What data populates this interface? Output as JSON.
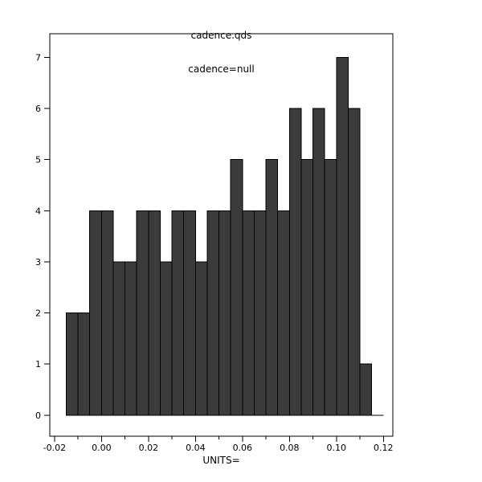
{
  "window": {
    "background": "#ffffff"
  },
  "chart_data": {
    "type": "histogram",
    "title": "cadence.qds",
    "subtitle": "cadence=null",
    "xlabel": "UNITS=",
    "ylabel": "",
    "bin_start": -0.015,
    "bin_width": 0.005,
    "counts": [
      2,
      2,
      4,
      4,
      3,
      3,
      4,
      4,
      3,
      4,
      4,
      3,
      4,
      4,
      5,
      4,
      4,
      5,
      4,
      6,
      5,
      6,
      5,
      7,
      6,
      1,
      0
    ],
    "xlim": [
      -0.022,
      0.124
    ],
    "ylim": [
      -0.41,
      7.46
    ],
    "x_ticks": [
      -0.02,
      0.0,
      0.02,
      0.04,
      0.06,
      0.08,
      0.1,
      0.12
    ],
    "x_tick_labels": [
      "-0.02",
      "0.00",
      "0.02",
      "0.04",
      "0.06",
      "0.08",
      "0.10",
      "0.12"
    ],
    "x_minor_ticks": [
      -0.01,
      0.01,
      0.03,
      0.05,
      0.07,
      0.09,
      0.11
    ],
    "y_ticks": [
      0,
      1,
      2,
      3,
      4,
      5,
      6,
      7
    ],
    "y_tick_labels": [
      "0",
      "1",
      "2",
      "3",
      "4",
      "5",
      "6",
      "7"
    ],
    "bar_fill": "#3b3b3b",
    "bar_stroke": "#000000",
    "frame_stroke": "#000000",
    "grid": false,
    "legend_position": "none"
  }
}
